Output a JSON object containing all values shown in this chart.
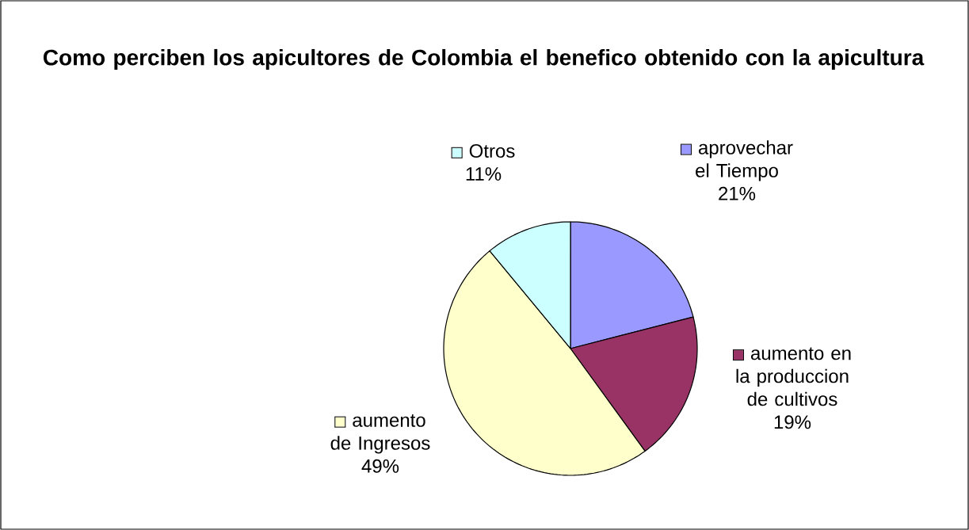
{
  "chart_data": {
    "type": "pie",
    "title": "Como perciben los apicultores de Colombia el benefico obtenido con la apicultura",
    "categories": [
      "aprovechar el Tiempo",
      "aumento en la produccion de  cultivos",
      "aumento de Ingresos",
      "Otros"
    ],
    "values": [
      21,
      19,
      49,
      11
    ],
    "value_labels": [
      "21%",
      "19%",
      "49%",
      "11%"
    ],
    "colors": [
      "#9999ff",
      "#993366",
      "#ffffcc",
      "#ccffff"
    ],
    "legend": "right"
  }
}
